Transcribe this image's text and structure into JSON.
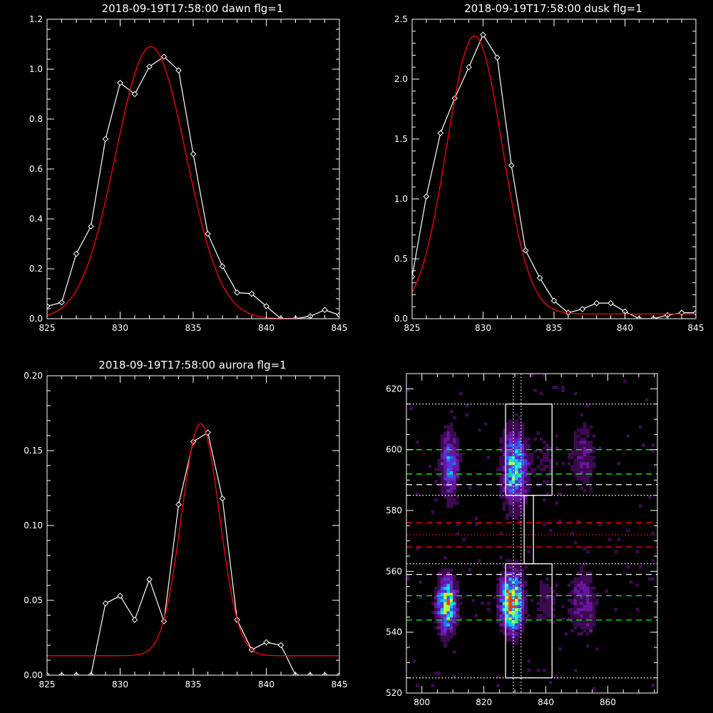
{
  "chart_data": [
    {
      "type": "line",
      "title": "2018-09-19T17:58:00 dawn flg=1",
      "xlim": [
        825,
        845
      ],
      "ylim": [
        0,
        1.2
      ],
      "xticks": [
        825,
        830,
        835,
        840,
        845
      ],
      "yticks": [
        0.0,
        0.2,
        0.4,
        0.6,
        0.8,
        1.0,
        1.2
      ],
      "ytick_labels": [
        "0.0",
        "0.2",
        "0.4",
        "0.6",
        "0.8",
        "1.0",
        "1.2"
      ],
      "series": [
        {
          "kind": "data",
          "color": "#ffffff",
          "marker": "diamond",
          "x": [
            825,
            826,
            827,
            828,
            829,
            830,
            831,
            832,
            833,
            834,
            835,
            836,
            837,
            838,
            839,
            840,
            841,
            842,
            843,
            844,
            845
          ],
          "y": [
            0.05,
            0.065,
            0.26,
            0.37,
            0.72,
            0.945,
            0.9,
            1.01,
            1.05,
            0.995,
            0.66,
            0.34,
            0.21,
            0.105,
            0.1,
            0.05,
            0.0,
            0.0,
            0.01,
            0.035,
            0.015
          ]
        },
        {
          "kind": "gaussian-fit",
          "color": "#ff0000",
          "amplitude": 1.09,
          "center": 832.1,
          "sigma": 2.4,
          "offset": 0.0
        }
      ]
    },
    {
      "type": "line",
      "title": "2018-09-19T17:58:00 dusk flg=1",
      "xlim": [
        825,
        845
      ],
      "ylim": [
        0,
        2.5
      ],
      "xticks": [
        825,
        830,
        835,
        840,
        845
      ],
      "yticks": [
        0.0,
        0.5,
        1.0,
        1.5,
        2.0,
        2.5
      ],
      "ytick_labels": [
        "0.0",
        "0.5",
        "1.0",
        "1.5",
        "2.0",
        "2.5"
      ],
      "series": [
        {
          "kind": "data",
          "color": "#ffffff",
          "marker": "diamond",
          "x": [
            825,
            826,
            827,
            828,
            829,
            830,
            831,
            832,
            833,
            834,
            835,
            836,
            837,
            838,
            839,
            840,
            841,
            842,
            843,
            844,
            845
          ],
          "y": [
            0.35,
            1.02,
            1.55,
            1.84,
            2.1,
            2.37,
            2.18,
            1.28,
            0.57,
            0.34,
            0.15,
            0.05,
            0.08,
            0.13,
            0.13,
            0.06,
            0.0,
            0.0,
            0.03,
            0.05,
            0.05
          ]
        },
        {
          "kind": "gaussian-fit",
          "color": "#ff0000",
          "amplitude": 2.32,
          "center": 829.4,
          "sigma": 1.95,
          "offset": 0.04
        }
      ]
    },
    {
      "type": "line",
      "title": "2018-09-19T17:58:00 aurora flg=1",
      "xlim": [
        825,
        845
      ],
      "ylim": [
        0,
        0.2
      ],
      "xticks": [
        825,
        830,
        835,
        840,
        845
      ],
      "yticks": [
        0.0,
        0.05,
        0.1,
        0.15,
        0.2
      ],
      "ytick_labels": [
        "0.00",
        "0.05",
        "0.10",
        "0.15",
        "0.20"
      ],
      "series": [
        {
          "kind": "data",
          "color": "#ffffff",
          "marker": "diamond",
          "x": [
            825,
            826,
            827,
            828,
            829,
            830,
            831,
            832,
            833,
            834,
            835,
            836,
            837,
            838,
            839,
            840,
            841,
            842,
            843,
            844,
            845
          ],
          "y": [
            0.0,
            0.0,
            0.0,
            0.0,
            0.048,
            0.053,
            0.037,
            0.064,
            0.036,
            0.114,
            0.156,
            0.162,
            0.118,
            0.037,
            0.017,
            0.022,
            0.02,
            0.0,
            0.0,
            0.0,
            0.0
          ],
          "line_from_x": 828
        },
        {
          "kind": "gaussian-fit",
          "color": "#ff0000",
          "amplitude": 0.155,
          "center": 835.5,
          "sigma": 1.3,
          "offset": 0.013
        }
      ]
    },
    {
      "type": "heatmap",
      "title": "",
      "xlim": [
        795,
        876
      ],
      "ylim": [
        520,
        625
      ],
      "xticks": [
        800,
        820,
        840,
        860
      ],
      "yticks": [
        520,
        540,
        560,
        580,
        600,
        620
      ],
      "colormap": [
        "#000000",
        "#3c0a50",
        "#6a14a0",
        "#5a32d0",
        "#2a6aff",
        "#00c8ff",
        "#30e8c8",
        "#b4ff40",
        "#ffe000",
        "#ff3000"
      ],
      "blobs": [
        {
          "x": 808,
          "y": 549,
          "sx": 2.0,
          "sy": 5.5,
          "amp": 1.0
        },
        {
          "x": 829,
          "y": 550,
          "sx": 2.2,
          "sy": 6.0,
          "amp": 1.25
        },
        {
          "x": 830,
          "y": 594,
          "sx": 2.5,
          "sy": 8.0,
          "amp": 0.75
        },
        {
          "x": 809,
          "y": 595,
          "sx": 1.8,
          "sy": 7.0,
          "amp": 0.55
        },
        {
          "x": 852,
          "y": 550,
          "sx": 3.0,
          "sy": 7.0,
          "amp": 0.28
        },
        {
          "x": 852,
          "y": 598,
          "sx": 3.0,
          "sy": 7.0,
          "amp": 0.22
        },
        {
          "x": 840,
          "y": 550,
          "sx": 2.5,
          "sy": 7.0,
          "amp": 0.15
        },
        {
          "x": 840,
          "y": 596,
          "sx": 2.5,
          "sy": 7.0,
          "amp": 0.12
        }
      ],
      "hlines": [
        {
          "y": 615,
          "color": "#ffffff",
          "style": "dotted"
        },
        {
          "y": 600,
          "color": "#00ff00",
          "style": "dashed"
        },
        {
          "y": 592,
          "color": "#00ff00",
          "style": "dashed"
        },
        {
          "y": 588.5,
          "color": "#ffffff",
          "style": "dashed"
        },
        {
          "y": 585,
          "color": "#ffffff",
          "style": "dotted"
        },
        {
          "y": 576,
          "color": "#ff0000",
          "style": "dashed"
        },
        {
          "y": 572,
          "color": "#ff0000",
          "style": "dotted"
        },
        {
          "y": 568,
          "color": "#ff0000",
          "style": "dashed"
        },
        {
          "y": 562.5,
          "color": "#ffffff",
          "style": "dotted"
        },
        {
          "y": 559,
          "color": "#ffffff",
          "style": "dashed"
        },
        {
          "y": 552,
          "color": "#00ff00",
          "style": "dashed"
        },
        {
          "y": 544,
          "color": "#00ff00",
          "style": "dashed"
        },
        {
          "y": 525,
          "color": "#ffffff",
          "style": "dotted"
        }
      ],
      "vlines": [
        {
          "x": 829.5,
          "color": "#ffffff",
          "style": "dotted"
        },
        {
          "x": 832,
          "color": "#ffffff",
          "style": "dotted"
        }
      ],
      "boxes": [
        {
          "x0": 827,
          "x1": 842,
          "y0": 585,
          "y1": 615
        },
        {
          "x0": 827,
          "x1": 842,
          "y0": 525,
          "y1": 562.5
        },
        {
          "x0": 833,
          "x1": 836,
          "y0": 562.5,
          "y1": 585
        }
      ]
    }
  ]
}
